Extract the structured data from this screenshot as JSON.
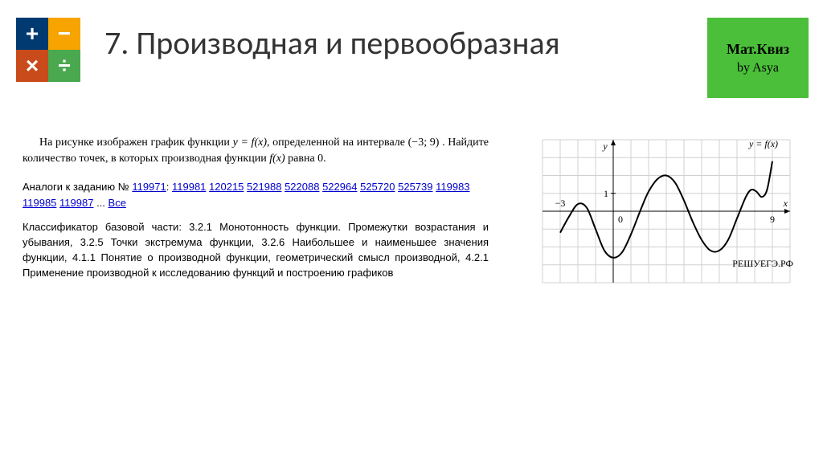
{
  "icon": {
    "plus": "+",
    "minus": "−",
    "times": "×",
    "div": "÷",
    "colors": {
      "plus": "#003a70",
      "minus": "#f7a400",
      "times": "#c94b1b",
      "div": "#4aa84e"
    }
  },
  "logo": {
    "bg": "#4bbf3a",
    "line1": "Мат.Квиз",
    "line2": "by Asya"
  },
  "title": "7. Производная и первообразная",
  "statement": {
    "pre": "На рисунке изображен график функции ",
    "func": "y = f(x)",
    "mid": ", определенной на интервале ",
    "interval": "(−3; 9)",
    "post": " . Найдите количество точек, в которых производная функции ",
    "fx": "f(x)",
    "tail": " равна 0."
  },
  "analogs": {
    "label": "Аналоги к заданию № ",
    "main": "119971",
    "sep": ": ",
    "ids": [
      "119981",
      "120215",
      "521988",
      "522088",
      "522964",
      "525720",
      "525739",
      "119983",
      "119985",
      "119987"
    ],
    "more": " ... ",
    "all": "Все"
  },
  "classifier": {
    "label": "Классификатор базовой части: ",
    "text": "3.2.1 Монотонность функции. Промежутки возрастания и убывания, 3.2.5 Точки экстремума функции, 3.2.6 Наибольшее и наименьшее значения функции, 4.1.1 Понятие о производной функции, геометрический смысл производной, 4.2.1 Применение производной к исследованию функций и построению графиков"
  },
  "chart": {
    "type": "line",
    "title": "y = f(x)",
    "xlabel": "x",
    "ylabel": "y",
    "xlim": [
      -4,
      10
    ],
    "ylim": [
      -4,
      4
    ],
    "x_ticks_labeled": {
      "-3": "−3",
      "9": "9"
    },
    "y_ticks_labeled": {
      "1": "1"
    },
    "origin_label": "0",
    "grid_color": "#d0d0d0",
    "axis_color": "#000000",
    "curve_color": "#000000",
    "curve_width": 2,
    "background": "#ffffff",
    "watermark": "РЕШУЕГЭ.РФ",
    "curve_points": [
      [
        -3.0,
        -1.2
      ],
      [
        -2.5,
        -0.3
      ],
      [
        -2.0,
        0.4
      ],
      [
        -1.5,
        0.2
      ],
      [
        -1.0,
        -1.0
      ],
      [
        -0.5,
        -2.2
      ],
      [
        0.0,
        -2.6
      ],
      [
        0.5,
        -2.3
      ],
      [
        1.0,
        -1.3
      ],
      [
        1.6,
        0.2
      ],
      [
        2.0,
        1.1
      ],
      [
        2.5,
        1.8
      ],
      [
        3.0,
        2.0
      ],
      [
        3.5,
        1.6
      ],
      [
        4.0,
        0.6
      ],
      [
        4.5,
        -0.6
      ],
      [
        5.0,
        -1.6
      ],
      [
        5.5,
        -2.2
      ],
      [
        6.0,
        -2.2
      ],
      [
        6.5,
        -1.6
      ],
      [
        7.0,
        -0.4
      ],
      [
        7.5,
        0.8
      ],
      [
        7.8,
        1.2
      ],
      [
        8.1,
        1.1
      ],
      [
        8.4,
        0.8
      ],
      [
        8.7,
        1.2
      ],
      [
        9.0,
        2.8
      ]
    ]
  }
}
